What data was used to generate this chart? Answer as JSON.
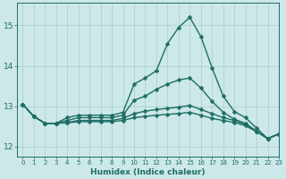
{
  "xlabel": "Humidex (Indice chaleur)",
  "ylabel": "",
  "background_color": "#cce8e8",
  "line_color": "#1e6e65",
  "grid_color": "#aacece",
  "xlim": [
    -0.5,
    23
  ],
  "ylim": [
    11.75,
    15.55
  ],
  "yticks": [
    12,
    13,
    14,
    15
  ],
  "xticks": [
    0,
    1,
    2,
    3,
    4,
    5,
    6,
    7,
    8,
    9,
    10,
    11,
    12,
    13,
    14,
    15,
    16,
    17,
    18,
    19,
    20,
    21,
    22,
    23
  ],
  "series": [
    [
      13.05,
      12.75,
      12.58,
      12.58,
      12.72,
      12.78,
      12.78,
      12.78,
      12.78,
      12.85,
      13.55,
      13.7,
      13.88,
      14.55,
      14.95,
      15.2,
      14.72,
      13.95,
      13.25,
      12.87,
      12.72,
      12.46,
      12.2,
      12.32
    ],
    [
      13.05,
      12.75,
      12.58,
      12.58,
      12.65,
      12.72,
      12.72,
      12.72,
      12.72,
      12.78,
      13.15,
      13.25,
      13.42,
      13.55,
      13.65,
      13.7,
      13.45,
      13.12,
      12.85,
      12.68,
      12.58,
      12.38,
      12.2,
      12.32
    ],
    [
      13.05,
      12.75,
      12.58,
      12.58,
      12.6,
      12.65,
      12.65,
      12.65,
      12.65,
      12.7,
      12.82,
      12.88,
      12.92,
      12.95,
      12.98,
      13.02,
      12.92,
      12.82,
      12.72,
      12.65,
      12.55,
      12.38,
      12.2,
      12.32
    ],
    [
      13.05,
      12.75,
      12.58,
      12.58,
      12.59,
      12.62,
      12.62,
      12.62,
      12.62,
      12.65,
      12.72,
      12.75,
      12.78,
      12.8,
      12.82,
      12.85,
      12.78,
      12.7,
      12.65,
      12.6,
      12.52,
      12.37,
      12.2,
      12.32
    ]
  ],
  "x": [
    0,
    1,
    2,
    3,
    4,
    5,
    6,
    7,
    8,
    9,
    10,
    11,
    12,
    13,
    14,
    15,
    16,
    17,
    18,
    19,
    20,
    21,
    22,
    23
  ],
  "marker": "D",
  "marker_size": 2.5,
  "line_width": 1.0
}
